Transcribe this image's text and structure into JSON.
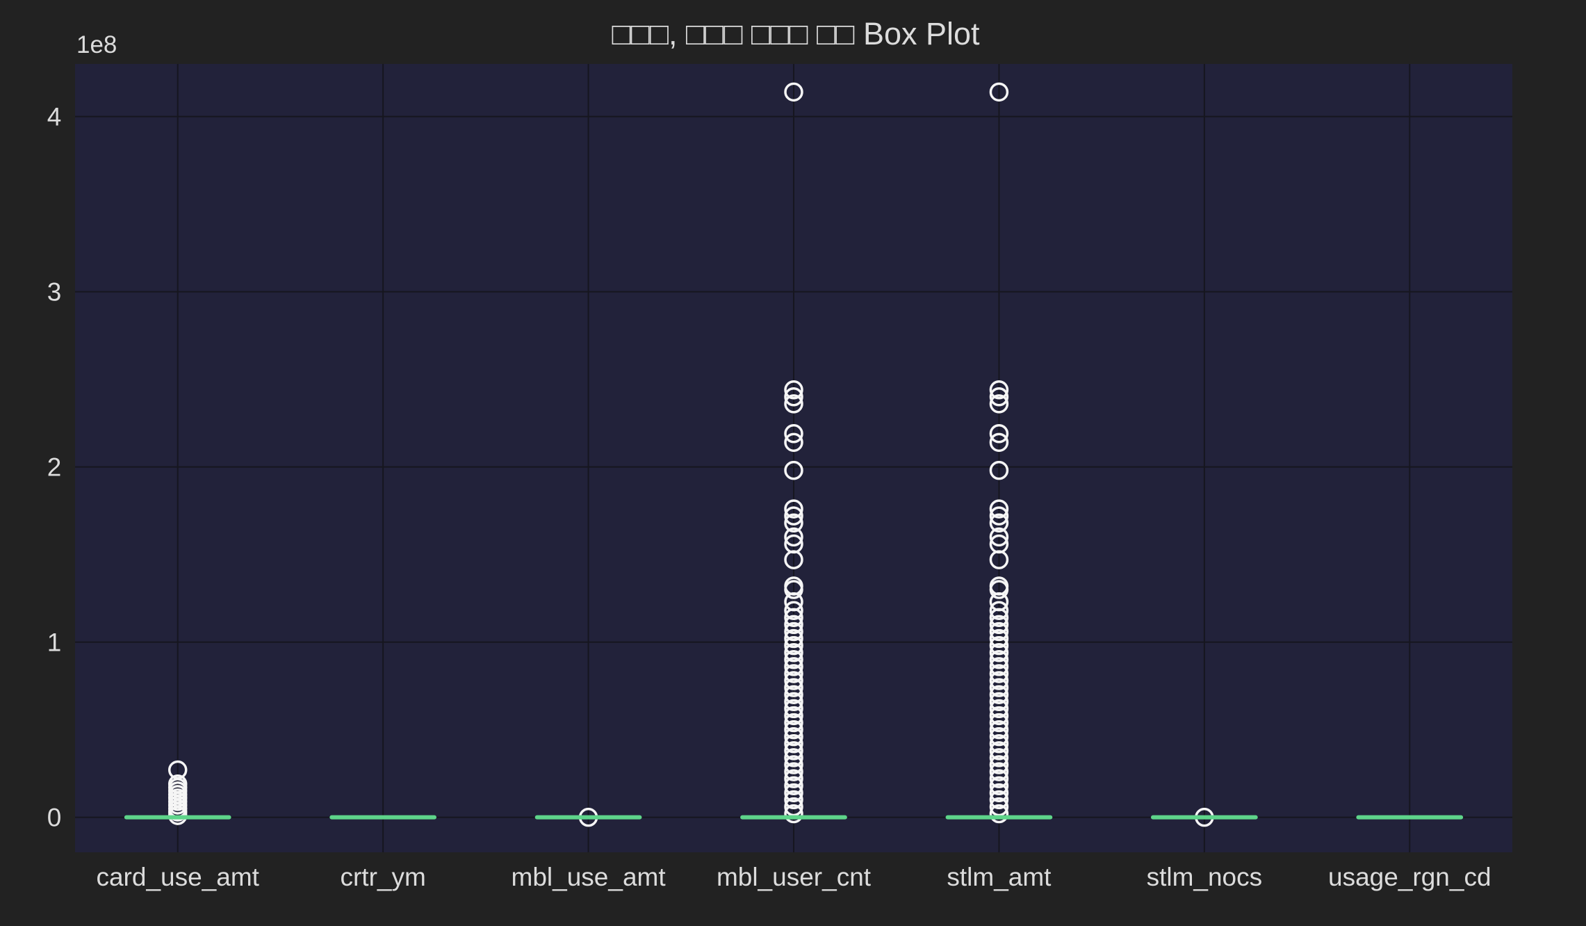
{
  "chart_data": {
    "type": "box",
    "title": "□□□, □□□ □□□ □□ Box Plot",
    "xlabel": "",
    "ylabel": "",
    "y_offset_label": "1e8",
    "y_scale_factor": 100000000,
    "ylim": [
      -0.2,
      4.3
    ],
    "y_ticks": [
      0,
      1,
      2,
      3,
      4
    ],
    "grid": true,
    "legend": "none",
    "categories": [
      "card_use_amt",
      "crtr_ym",
      "mbl_use_amt",
      "mbl_user_cnt",
      "stlm_amt",
      "stlm_nocs",
      "usage_rgn_cd"
    ],
    "series": [
      {
        "box_stats": [
          {
            "q1": 0,
            "median": 0,
            "q3": 0,
            "whisker_low": 0,
            "whisker_high": 0
          },
          {
            "q1": 0,
            "median": 0,
            "q3": 0,
            "whisker_low": 0,
            "whisker_high": 0
          },
          {
            "q1": 0,
            "median": 0,
            "q3": 0,
            "whisker_low": 0,
            "whisker_high": 0
          },
          {
            "q1": 0,
            "median": 0,
            "q3": 0,
            "whisker_low": 0,
            "whisker_high": 0
          },
          {
            "q1": 0,
            "median": 0,
            "q3": 0,
            "whisker_low": 0,
            "whisker_high": 0
          },
          {
            "q1": 0,
            "median": 0,
            "q3": 0,
            "whisker_low": 0,
            "whisker_high": 0
          },
          {
            "q1": 0,
            "median": 0,
            "q3": 0,
            "whisker_low": 0,
            "whisker_high": 0
          }
        ],
        "outliers": [
          [
            0.27,
            0.19,
            0.17,
            0.15,
            0.13,
            0.11,
            0.09,
            0.07,
            0.05,
            0.03,
            0.01
          ],
          [],
          [
            0.0
          ],
          [
            4.14,
            2.44,
            2.4,
            2.36,
            2.19,
            2.14,
            1.98,
            1.76,
            1.72,
            1.68,
            1.6,
            1.56,
            1.47,
            1.32,
            1.3,
            1.23,
            1.18,
            1.14,
            1.1,
            1.06,
            1.02,
            0.98,
            0.94,
            0.9,
            0.86,
            0.82,
            0.78,
            0.74,
            0.7,
            0.66,
            0.62,
            0.58,
            0.54,
            0.5,
            0.46,
            0.42,
            0.38,
            0.34,
            0.3,
            0.26,
            0.22,
            0.18,
            0.14,
            0.1,
            0.06,
            0.02
          ],
          [
            4.14,
            2.44,
            2.4,
            2.36,
            2.19,
            2.14,
            1.98,
            1.76,
            1.72,
            1.68,
            1.6,
            1.56,
            1.47,
            1.32,
            1.3,
            1.23,
            1.18,
            1.14,
            1.1,
            1.06,
            1.02,
            0.98,
            0.94,
            0.9,
            0.86,
            0.82,
            0.78,
            0.74,
            0.7,
            0.66,
            0.62,
            0.58,
            0.54,
            0.5,
            0.46,
            0.42,
            0.38,
            0.34,
            0.3,
            0.26,
            0.22,
            0.18,
            0.14,
            0.1,
            0.06,
            0.02
          ],
          [
            0.0
          ],
          []
        ]
      }
    ]
  },
  "colors": {
    "figure_bg": "#222222",
    "plot_bg": "#22223a",
    "grid": "#16161f",
    "median": "#5ed48a",
    "outlier_stroke": "#f5f5f5",
    "text": "#dcdcdc"
  }
}
